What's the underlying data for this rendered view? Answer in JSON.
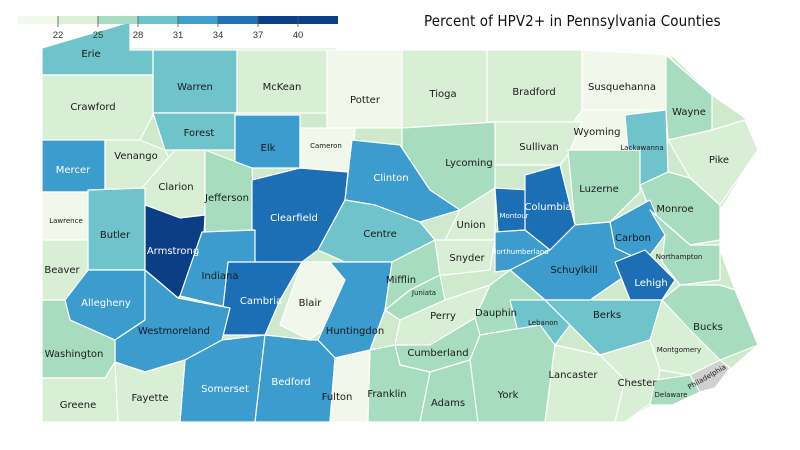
{
  "title": "Percent of HPV2+ in Pennsylvania Counties",
  "legend": {
    "ticks": [
      "22",
      "25",
      "28",
      "31",
      "34",
      "37",
      "40"
    ],
    "bin_colors": [
      "#f3f8ec",
      "#dff0d9",
      "#a9dcc2",
      "#6dc3ca",
      "#3f9fce",
      "#1f72b6",
      "#0b3f86"
    ]
  },
  "colors": {
    "c1": "#f2f7ec",
    "c2": "#d8eed5",
    "c3": "#a8dcbf",
    "c4": "#6fc3cb",
    "c5": "#3b9ccd",
    "c6": "#1d6fb5",
    "c7": "#0b3e85",
    "na": "#d0d0d0"
  },
  "counties": [
    {
      "name": "Erie"
    },
    {
      "name": "Warren"
    },
    {
      "name": "McKean"
    },
    {
      "name": "Potter"
    },
    {
      "name": "Tioga"
    },
    {
      "name": "Bradford"
    },
    {
      "name": "Susquehanna"
    },
    {
      "name": "Wayne"
    },
    {
      "name": "Crawford"
    },
    {
      "name": "Forest"
    },
    {
      "name": "Elk"
    },
    {
      "name": "Cameron"
    },
    {
      "name": "Wyoming"
    },
    {
      "name": "Lackawanna"
    },
    {
      "name": "Pike"
    },
    {
      "name": "Mercer"
    },
    {
      "name": "Venango"
    },
    {
      "name": "Clarion"
    },
    {
      "name": "Jefferson"
    },
    {
      "name": "Clearfield"
    },
    {
      "name": "Clinton"
    },
    {
      "name": "Lycoming"
    },
    {
      "name": "Sullivan"
    },
    {
      "name": "Luzerne"
    },
    {
      "name": "Monroe"
    },
    {
      "name": "Lawrence"
    },
    {
      "name": "Butler"
    },
    {
      "name": "Armstrong"
    },
    {
      "name": "Indiana"
    },
    {
      "name": "Centre"
    },
    {
      "name": "Union"
    },
    {
      "name": "Montour"
    },
    {
      "name": "Columbia"
    },
    {
      "name": "Carbon"
    },
    {
      "name": "Northampton"
    },
    {
      "name": "Beaver"
    },
    {
      "name": "Allegheny"
    },
    {
      "name": "Cambria"
    },
    {
      "name": "Blair"
    },
    {
      "name": "Mifflin"
    },
    {
      "name": "Snyder"
    },
    {
      "name": "Northumberland"
    },
    {
      "name": "Schuylkill"
    },
    {
      "name": "Lehigh"
    },
    {
      "name": "Juniata"
    },
    {
      "name": "Westmoreland"
    },
    {
      "name": "Huntingdon"
    },
    {
      "name": "Perry"
    },
    {
      "name": "Dauphin"
    },
    {
      "name": "Lebanon"
    },
    {
      "name": "Berks"
    },
    {
      "name": "Bucks"
    },
    {
      "name": "Washington"
    },
    {
      "name": "Cumberland"
    },
    {
      "name": "Montgomery"
    },
    {
      "name": "Somerset"
    },
    {
      "name": "Bedford"
    },
    {
      "name": "Lancaster"
    },
    {
      "name": "Chester"
    },
    {
      "name": "Philadelphia"
    },
    {
      "name": "Greene"
    },
    {
      "name": "Fayette"
    },
    {
      "name": "Fulton"
    },
    {
      "name": "Franklin"
    },
    {
      "name": "Adams"
    },
    {
      "name": "York"
    },
    {
      "name": "Delaware"
    }
  ]
}
